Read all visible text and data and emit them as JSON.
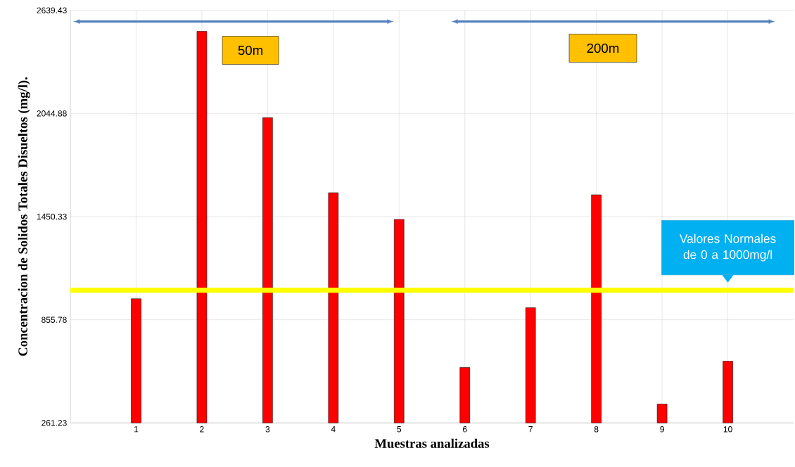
{
  "chart_data": {
    "type": "bar",
    "xlabel": "Muestras analizadas",
    "ylabel": "Concentracion de Solidos Totales Disueltos (mg/l).",
    "categories": [
      "1",
      "2",
      "3",
      "4",
      "5",
      "6",
      "7",
      "8",
      "9",
      "10"
    ],
    "values": [
      977,
      2518,
      2021,
      1588,
      1434,
      581,
      925,
      1576,
      370,
      617
    ],
    "color": "#ff0000",
    "ylim": [
      261.23,
      2639.43
    ],
    "yticks": [
      261.23,
      855.78,
      1450.33,
      2044.88,
      2639.43
    ],
    "grid": true,
    "ref_lines": [
      {
        "axis": "y",
        "value": 1026,
        "label": "Valores Normales de 0 a 1000mg/l",
        "color": "#ffff00"
      }
    ],
    "annotations": [
      "50m",
      "200m"
    ]
  }
}
